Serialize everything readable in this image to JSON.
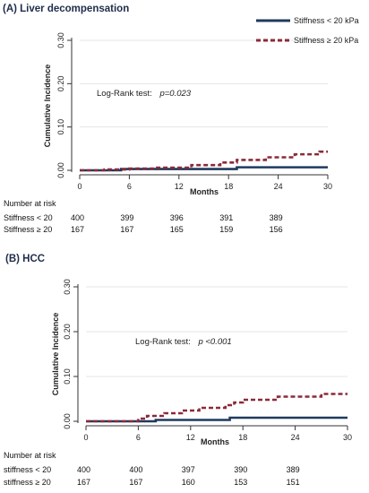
{
  "chart_data": [
    {
      "type": "line",
      "title": "(A) Liver  decompensation",
      "xlabel": "Months",
      "ylabel": "Cumulative Incidence",
      "xlim": [
        0,
        30
      ],
      "ylim": [
        0,
        0.3
      ],
      "xticks": [
        0,
        6,
        12,
        18,
        24,
        30
      ],
      "yticks": [
        0.0,
        0.1,
        0.2,
        0.3
      ],
      "ytick_labels": [
        "0.00",
        "0.10",
        "0.20",
        "0.30"
      ],
      "grid": true,
      "legend_position": "top-right",
      "annotation": {
        "prefix": "Log-Rank test:",
        "value": "p=0.023"
      },
      "series": [
        {
          "name": "Stiffness < 20 kPa",
          "color": "#1f3a5f",
          "style": "solid",
          "steps": [
            [
              0,
              0
            ],
            [
              5,
              0.003
            ],
            [
              19,
              0.007
            ],
            [
              30,
              0.007
            ]
          ]
        },
        {
          "name": "Stiffness ≥ 20 kPa",
          "color": "#8b2a3a",
          "style": "dashed",
          "steps": [
            [
              0,
              0
            ],
            [
              3,
              0.002
            ],
            [
              6,
              0.004
            ],
            [
              9,
              0.006
            ],
            [
              13.5,
              0.012
            ],
            [
              17,
              0.018
            ],
            [
              19,
              0.024
            ],
            [
              22.5,
              0.03
            ],
            [
              26,
              0.037
            ],
            [
              29,
              0.043
            ],
            [
              30,
              0.043
            ]
          ]
        }
      ],
      "risk_table": {
        "title": "Number at risk",
        "rows": [
          {
            "label": "Stiffness < 20",
            "values": [
              "400",
              "399",
              "396",
              "391",
              "389"
            ]
          },
          {
            "label": "Stiffness ≥ 20",
            "values": [
              "167",
              "167",
              "165",
              "159",
              "156"
            ]
          }
        ]
      }
    },
    {
      "type": "line",
      "title": "(B) HCC",
      "xlabel": "Months",
      "ylabel": "Cumulative Incidence",
      "xlim": [
        0,
        30
      ],
      "ylim": [
        0,
        0.3
      ],
      "xticks": [
        0,
        6,
        12,
        18,
        24,
        30
      ],
      "yticks": [
        0.0,
        0.1,
        0.2,
        0.3
      ],
      "ytick_labels": [
        "0.00",
        "0.10",
        "0.20",
        "0.30"
      ],
      "grid": true,
      "annotation": {
        "prefix": "Log-Rank test:",
        "value": "p <0.001"
      },
      "series": [
        {
          "color": "#1f3a5f",
          "style": "solid",
          "steps": [
            [
              0,
              0
            ],
            [
              8,
              0.003
            ],
            [
              16.5,
              0.008
            ],
            [
              30,
              0.008
            ]
          ]
        },
        {
          "color": "#8b2a3a",
          "style": "dashed",
          "steps": [
            [
              0,
              0
            ],
            [
              6,
              0.006
            ],
            [
              7,
              0.012
            ],
            [
              9,
              0.018
            ],
            [
              11,
              0.024
            ],
            [
              13,
              0.03
            ],
            [
              16,
              0.036
            ],
            [
              17,
              0.042
            ],
            [
              18,
              0.048
            ],
            [
              22,
              0.055
            ],
            [
              27,
              0.061
            ],
            [
              30,
              0.061
            ]
          ]
        }
      ],
      "risk_table": {
        "title": "Number at  risk",
        "rows": [
          {
            "label": "stiffness < 20",
            "values": [
              "400",
              "400",
              "397",
              "390",
              "389"
            ]
          },
          {
            "label": "stiffness ≥ 20",
            "values": [
              "167",
              "167",
              "160",
              "153",
              "151"
            ]
          }
        ]
      }
    }
  ]
}
